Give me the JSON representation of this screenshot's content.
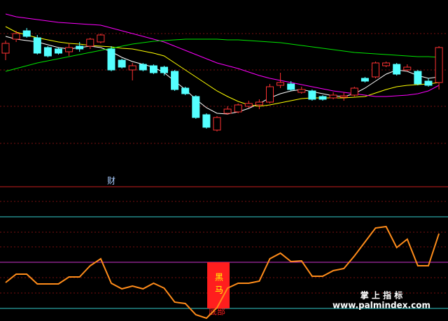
{
  "chart_data": [
    {
      "type": "candlestick",
      "up_color": "#ff3232",
      "down_color": "#54ffff",
      "ylim": [
        -10,
        200
      ],
      "ohlc": [
        [
          124,
          138,
          142,
          114
        ],
        [
          144,
          152,
          156,
          140
        ],
        [
          156,
          148,
          160,
          146
        ],
        [
          146,
          124,
          150,
          122
        ],
        [
          132,
          120,
          134,
          118
        ],
        [
          130,
          124,
          132,
          122
        ],
        [
          126,
          132,
          138,
          120
        ],
        [
          134,
          130,
          140,
          126
        ],
        [
          134,
          144,
          146,
          130
        ],
        [
          140,
          150,
          152,
          138
        ],
        [
          130,
          100,
          134,
          98
        ],
        [
          114,
          104,
          116,
          102
        ],
        [
          100,
          106,
          110,
          85
        ],
        [
          108,
          100,
          110,
          98
        ],
        [
          106,
          96,
          108,
          94
        ],
        [
          104,
          96,
          106,
          92
        ],
        [
          98,
          72,
          100,
          70
        ],
        [
          74,
          66,
          76,
          64
        ],
        [
          62,
          32,
          64,
          30
        ],
        [
          36,
          18,
          38,
          16
        ],
        [
          14,
          32,
          34,
          12
        ],
        [
          38,
          44,
          48,
          36
        ],
        [
          40,
          50,
          52,
          38
        ],
        [
          48,
          52,
          56,
          46
        ],
        [
          50,
          54,
          58,
          44
        ],
        [
          54,
          76,
          80,
          52
        ],
        [
          78,
          82,
          96,
          74
        ],
        [
          80,
          72,
          84,
          70
        ],
        [
          68,
          72,
          76,
          66
        ],
        [
          70,
          58,
          72,
          56
        ],
        [
          62,
          58,
          64,
          56
        ],
        [
          60,
          64,
          68,
          58
        ],
        [
          61,
          63,
          68,
          56
        ],
        [
          64,
          74,
          76,
          62
        ],
        [
          88,
          84,
          90,
          82
        ],
        [
          90,
          110,
          112,
          88
        ],
        [
          106,
          110,
          112,
          104
        ],
        [
          108,
          94,
          110,
          92
        ],
        [
          100,
          104,
          108,
          98
        ],
        [
          98,
          80,
          100,
          78
        ],
        [
          84,
          78,
          88,
          76
        ],
        [
          82,
          132,
          134,
          72
        ]
      ],
      "series": [
        {
          "color": "#ffffff",
          "values": [
            148,
            144,
            142,
            140,
            136,
            132,
            130,
            132,
            134,
            132,
            126,
            118,
            112,
            108,
            104,
            96,
            84,
            72,
            58,
            46,
            38,
            37,
            40,
            45,
            52,
            60,
            66,
            70,
            72,
            69,
            66,
            63,
            62,
            66,
            74,
            84,
            94,
            100,
            98,
            92,
            88,
            90
          ]
        },
        {
          "color": "#ffff00",
          "values": [
            162,
            154,
            150,
            146,
            143,
            140,
            138,
            137,
            135,
            134,
            133,
            131,
            130,
            127,
            124,
            120,
            110,
            100,
            90,
            80,
            70,
            62,
            55,
            50,
            48,
            50,
            53,
            56,
            59,
            60,
            60,
            60,
            60,
            61,
            62,
            67,
            72,
            76,
            78,
            79,
            80,
            82
          ]
        },
        {
          "color": "#ff00ff",
          "values": [
            180,
            176,
            174,
            172,
            170,
            168,
            167,
            166,
            165,
            164,
            160,
            156,
            152,
            148,
            144,
            140,
            134,
            128,
            122,
            116,
            110,
            106,
            102,
            97,
            92,
            88,
            85,
            82,
            79,
            76,
            73,
            70,
            68,
            66,
            64,
            62,
            62,
            63,
            64,
            66,
            70,
            78
          ]
        },
        {
          "color": "#00e600",
          "values": [
            98,
            102,
            106,
            110,
            113,
            116,
            119,
            122,
            125,
            128,
            131,
            134,
            137,
            139,
            141,
            142,
            143,
            144,
            144,
            144,
            144,
            143,
            143,
            142,
            141,
            140,
            139,
            137,
            135,
            133,
            131,
            129,
            127,
            125,
            124,
            123,
            122,
            121,
            120,
            119,
            119,
            118
          ]
        }
      ]
    },
    {
      "type": "line",
      "color": "#ff8c1a",
      "ylim": [
        0,
        193
      ],
      "values": [
        56,
        68,
        68,
        54,
        54,
        54,
        64,
        64,
        80,
        90,
        55,
        47,
        51,
        47,
        55,
        48,
        28,
        26,
        10,
        5,
        20,
        48,
        55,
        55,
        58,
        90,
        98,
        86,
        87,
        65,
        65,
        73,
        76,
        94,
        114,
        134,
        136,
        106,
        118,
        80,
        80,
        126
      ],
      "reference_lines": [
        {
          "value": 193,
          "color": "#c81e1e"
        },
        {
          "value": 150,
          "color": "#33cccc"
        },
        {
          "value": 85,
          "color": "#cc33cc"
        },
        {
          "value": 19,
          "color": "#33cccc"
        }
      ],
      "annotations": [
        {
          "text": "财",
          "index": 10
        }
      ],
      "signals": [
        {
          "index": 20,
          "from": 19,
          "to": 85,
          "label": "黑马",
          "note": "底部",
          "color": "#ff1e1e"
        }
      ]
    }
  ],
  "watermark": {
    "title": "掌 上 指 标",
    "url": "www.palmindex.com"
  }
}
